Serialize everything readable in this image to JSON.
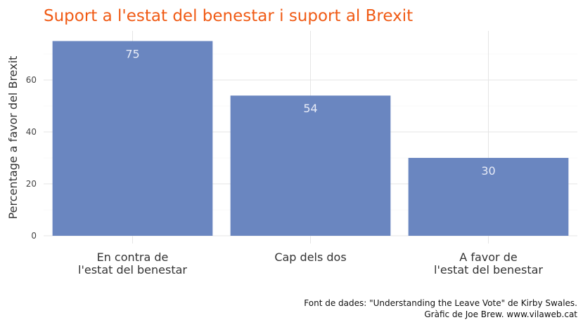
{
  "chart_data": {
    "type": "bar",
    "title": "Suport a l'estat del benestar i suport al Brexit",
    "xlabel": "",
    "ylabel": "Percentage a favor del Brexit",
    "categories": [
      [
        "En contra de",
        "l'estat del benestar"
      ],
      [
        "Cap dels dos"
      ],
      [
        "A favor de",
        "l'estat del benestar"
      ]
    ],
    "values": [
      75,
      54,
      30
    ],
    "data_labels": [
      "75",
      "54",
      "30"
    ],
    "ylim": [
      0,
      78
    ],
    "yticks": [
      0,
      20,
      40,
      60
    ],
    "grid": true,
    "legend": "none",
    "colors": {
      "bar": "#6a86c0",
      "title": "#f05a14",
      "grid": "#e5e5e5"
    }
  },
  "caption": {
    "line1": "Font de dades: \"Understanding the Leave Vote\" de Kirby Swales.",
    "line2": "Gràfic de Joe Brew. www.vilaweb.cat"
  }
}
